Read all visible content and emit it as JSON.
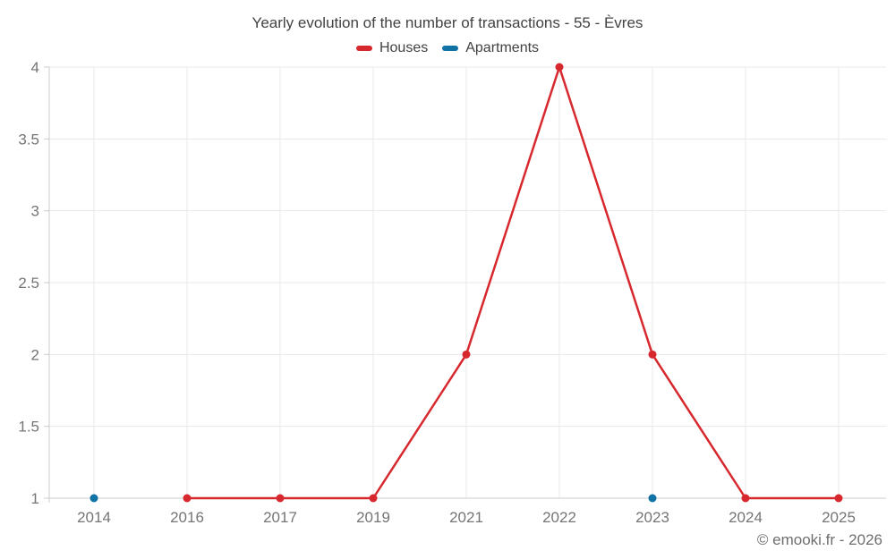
{
  "chart_data": {
    "type": "line",
    "title": "Yearly evolution of the number of transactions - 55 - Èvres",
    "categories": [
      "2014",
      "2016",
      "2017",
      "2019",
      "2021",
      "2022",
      "2023",
      "2024",
      "2025"
    ],
    "series": [
      {
        "name": "Houses",
        "color": "#d7282e",
        "values": [
          null,
          1,
          1,
          1,
          2,
          4,
          2,
          1,
          1
        ]
      },
      {
        "name": "Apartments",
        "color": "#1172a5",
        "values": [
          1,
          null,
          null,
          null,
          null,
          null,
          1,
          null,
          null
        ]
      }
    ],
    "ylim": [
      1,
      4
    ],
    "yticks": [
      1,
      1.5,
      2,
      2.5,
      3,
      3.5,
      4
    ],
    "ytick_labels": [
      "1",
      "1.5",
      "2",
      "2.5",
      "3",
      "3.5",
      "4"
    ],
    "xlabel": "",
    "ylabel": "",
    "grid": true,
    "legend_position": "top"
  },
  "watermark": {
    "text": "© emooki.fr - 2026"
  },
  "colors": {
    "grid": "#e8e8e8",
    "axis": "#cccccc",
    "axis_label": "#757575",
    "title_text": "#424242",
    "watermark_text": "#6e6e6e",
    "background": "#ffffff"
  }
}
